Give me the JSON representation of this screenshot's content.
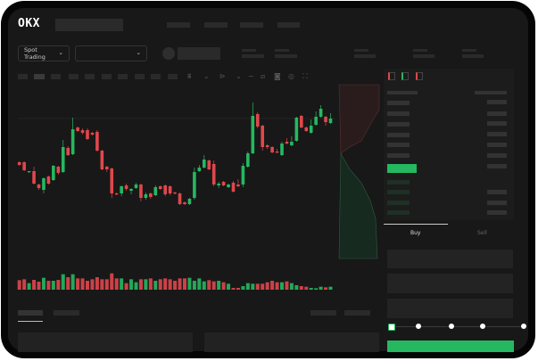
{
  "header": {
    "logo": "OKX"
  },
  "market_bar": {
    "spot_trading_label": "Spot Trading",
    "chevron": "⌄"
  },
  "trade_panel": {
    "buy_tab": "Buy",
    "sell_tab": "Sell",
    "active_tab": "Buy"
  },
  "colors": {
    "up": "#25b860",
    "down": "#e0474c",
    "background": "#181818",
    "accent": "#25b860"
  },
  "slider": {
    "value_percent": 0,
    "stops": [
      0,
      25,
      50,
      75,
      100
    ]
  },
  "chart_data": {
    "type": "candlestick",
    "candles": [
      {
        "o": 118,
        "h": 119,
        "l": 114,
        "c": 115
      },
      {
        "o": 118,
        "h": 119,
        "l": 108,
        "c": 109
      },
      {
        "o": 107,
        "h": 108,
        "l": 106,
        "c": 108
      },
      {
        "o": 108,
        "h": 113,
        "l": 93,
        "c": 94
      },
      {
        "o": 93,
        "h": 94,
        "l": 87,
        "c": 89
      },
      {
        "o": 87,
        "h": 101,
        "l": 83,
        "c": 100
      },
      {
        "o": 102,
        "h": 103,
        "l": 93,
        "c": 94
      },
      {
        "o": 98,
        "h": 115,
        "l": 97,
        "c": 114
      },
      {
        "o": 113,
        "h": 114,
        "l": 104,
        "c": 106
      },
      {
        "o": 107,
        "h": 143,
        "l": 106,
        "c": 135
      },
      {
        "o": 134,
        "h": 136,
        "l": 125,
        "c": 126
      },
      {
        "o": 127,
        "h": 168,
        "l": 126,
        "c": 155
      },
      {
        "o": 157,
        "h": 158,
        "l": 152,
        "c": 153
      },
      {
        "o": 154,
        "h": 156,
        "l": 149,
        "c": 151
      },
      {
        "o": 154,
        "h": 156,
        "l": 143,
        "c": 144
      },
      {
        "o": 151,
        "h": 152,
        "l": 148,
        "c": 149
      },
      {
        "o": 152,
        "h": 154,
        "l": 130,
        "c": 131
      },
      {
        "o": 131,
        "h": 132,
        "l": 109,
        "c": 110
      },
      {
        "o": 113,
        "h": 114,
        "l": 107,
        "c": 110
      },
      {
        "o": 111,
        "h": 112,
        "l": 78,
        "c": 83
      },
      {
        "o": 83,
        "h": 84,
        "l": 81,
        "c": 82
      },
      {
        "o": 83,
        "h": 92,
        "l": 80,
        "c": 91
      },
      {
        "o": 92,
        "h": 94,
        "l": 86,
        "c": 88
      },
      {
        "o": 86,
        "h": 89,
        "l": 82,
        "c": 88
      },
      {
        "o": 89,
        "h": 95,
        "l": 88,
        "c": 93
      },
      {
        "o": 93,
        "h": 94,
        "l": 74,
        "c": 78
      },
      {
        "o": 78,
        "h": 84,
        "l": 76,
        "c": 82
      },
      {
        "o": 83,
        "h": 84,
        "l": 77,
        "c": 79
      },
      {
        "o": 81,
        "h": 92,
        "l": 80,
        "c": 90
      },
      {
        "o": 91,
        "h": 92,
        "l": 87,
        "c": 88
      },
      {
        "o": 92,
        "h": 93,
        "l": 80,
        "c": 82
      },
      {
        "o": 91,
        "h": 92,
        "l": 81,
        "c": 83
      },
      {
        "o": 84,
        "h": 85,
        "l": 82,
        "c": 83
      },
      {
        "o": 83,
        "h": 84,
        "l": 70,
        "c": 71
      },
      {
        "o": 73,
        "h": 74,
        "l": 70,
        "c": 71
      },
      {
        "o": 71,
        "h": 78,
        "l": 70,
        "c": 77
      },
      {
        "o": 78,
        "h": 112,
        "l": 76,
        "c": 107
      },
      {
        "o": 108,
        "h": 115,
        "l": 107,
        "c": 112
      },
      {
        "o": 112,
        "h": 126,
        "l": 111,
        "c": 121
      },
      {
        "o": 120,
        "h": 121,
        "l": 109,
        "c": 110
      },
      {
        "o": 116,
        "h": 120,
        "l": 91,
        "c": 93
      },
      {
        "o": 92,
        "h": 96,
        "l": 89,
        "c": 94
      },
      {
        "o": 96,
        "h": 97,
        "l": 91,
        "c": 92
      },
      {
        "o": 90,
        "h": 94,
        "l": 89,
        "c": 93
      },
      {
        "o": 95,
        "h": 97,
        "l": 84,
        "c": 85
      },
      {
        "o": 93,
        "h": 99,
        "l": 90,
        "c": 91
      },
      {
        "o": 93,
        "h": 117,
        "l": 90,
        "c": 114
      },
      {
        "o": 113,
        "h": 130,
        "l": 112,
        "c": 128
      },
      {
        "o": 128,
        "h": 185,
        "l": 127,
        "c": 170
      },
      {
        "o": 172,
        "h": 174,
        "l": 156,
        "c": 158
      },
      {
        "o": 159,
        "h": 160,
        "l": 131,
        "c": 135
      },
      {
        "o": 137,
        "h": 138,
        "l": 133,
        "c": 135
      },
      {
        "o": 135,
        "h": 136,
        "l": 128,
        "c": 129
      },
      {
        "o": 130,
        "h": 133,
        "l": 128,
        "c": 129
      },
      {
        "o": 126,
        "h": 141,
        "l": 125,
        "c": 139
      },
      {
        "o": 141,
        "h": 145,
        "l": 138,
        "c": 139
      },
      {
        "o": 137,
        "h": 147,
        "l": 136,
        "c": 141
      },
      {
        "o": 142,
        "h": 169,
        "l": 141,
        "c": 168
      },
      {
        "o": 170,
        "h": 171,
        "l": 156,
        "c": 157
      },
      {
        "o": 157,
        "h": 158,
        "l": 152,
        "c": 153
      },
      {
        "o": 151,
        "h": 166,
        "l": 150,
        "c": 159
      },
      {
        "o": 160,
        "h": 175,
        "l": 159,
        "c": 169
      },
      {
        "o": 169,
        "h": 182,
        "l": 168,
        "c": 178
      },
      {
        "o": 169,
        "h": 170,
        "l": 159,
        "c": 163
      },
      {
        "o": 162,
        "h": 173,
        "l": 161,
        "c": 167
      }
    ],
    "volume": [
      32,
      35,
      22,
      33,
      27,
      40,
      30,
      30,
      33,
      52,
      42,
      52,
      38,
      38,
      30,
      35,
      42,
      35,
      35,
      55,
      38,
      38,
      22,
      35,
      25,
      35,
      35,
      38,
      30,
      35,
      38,
      35,
      30,
      38,
      38,
      40,
      30,
      38,
      28,
      32,
      28,
      30,
      25,
      20,
      6,
      6,
      12,
      22,
      20,
      20,
      20,
      25,
      30,
      25,
      25,
      28,
      22,
      15,
      12,
      10,
      6,
      5,
      10,
      8,
      10
    ],
    "grid": false
  }
}
